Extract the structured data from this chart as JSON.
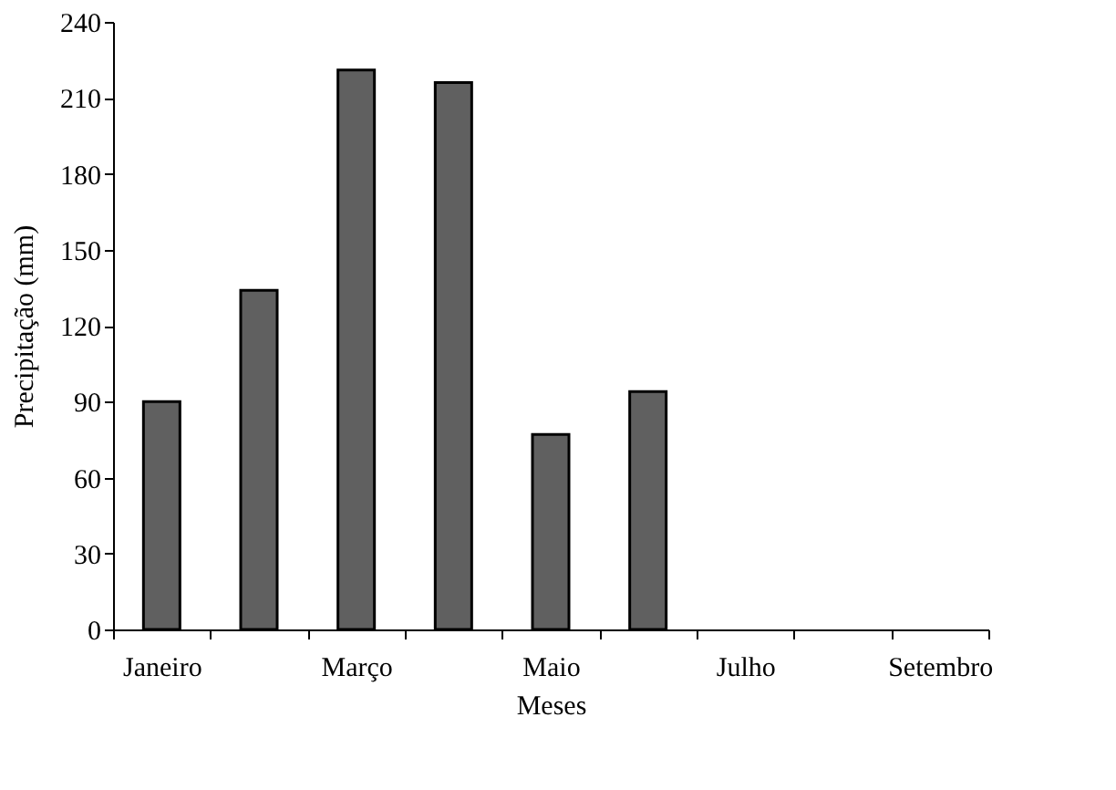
{
  "chart_data": {
    "type": "bar",
    "xlabel": "Meses",
    "ylabel": "Precipitação (mm)",
    "categories": [
      "Janeiro",
      null,
      "Março",
      null,
      "Maio",
      null,
      "Julho",
      null,
      "Setembro"
    ],
    "values": [
      90,
      134,
      221,
      216,
      77,
      94,
      null,
      null,
      null
    ],
    "color": "#606060",
    "ylim": [
      0,
      240
    ],
    "yticks": [
      0,
      30,
      60,
      90,
      120,
      150,
      180,
      210,
      240
    ],
    "grid": false
  }
}
